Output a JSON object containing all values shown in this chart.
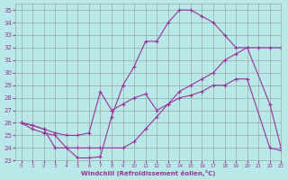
{
  "xlabel": "Windchill (Refroidissement éolien,°C)",
  "xlim": [
    -0.5,
    23
  ],
  "ylim": [
    23,
    35.5
  ],
  "yticks": [
    23,
    24,
    25,
    26,
    27,
    28,
    29,
    30,
    31,
    32,
    33,
    34,
    35
  ],
  "xticks": [
    0,
    1,
    2,
    3,
    4,
    5,
    6,
    7,
    8,
    9,
    10,
    11,
    12,
    13,
    14,
    15,
    16,
    17,
    18,
    19,
    20,
    21,
    22,
    23
  ],
  "bg_color": "#b8e8e8",
  "line_color": "#993399",
  "grid_color": "#99aaaa",
  "line1_x": [
    0,
    1,
    2,
    3,
    4,
    5,
    6,
    7,
    8,
    9,
    10,
    11,
    12,
    13,
    14,
    15,
    16,
    17,
    18,
    19,
    20,
    22,
    23
  ],
  "line1_y": [
    26.0,
    25.5,
    25.2,
    25.0,
    24.0,
    23.2,
    23.2,
    23.3,
    26.5,
    29.0,
    30.5,
    32.5,
    32.5,
    34.0,
    35.0,
    35.0,
    34.5,
    34.0,
    33.0,
    32.0,
    32.0,
    27.5,
    24.0
  ],
  "line2_x": [
    0,
    1,
    2,
    3,
    4,
    5,
    6,
    7,
    8,
    9,
    10,
    11,
    12,
    13,
    14,
    15,
    16,
    17,
    18,
    19,
    20,
    22,
    23
  ],
  "line2_y": [
    26.0,
    25.8,
    25.5,
    25.2,
    25.0,
    25.0,
    25.2,
    28.5,
    27.0,
    27.5,
    28.0,
    28.3,
    27.0,
    27.5,
    28.0,
    28.2,
    28.5,
    29.0,
    29.0,
    29.5,
    29.5,
    24.0,
    23.8
  ],
  "line3_x": [
    0,
    1,
    2,
    3,
    4,
    5,
    6,
    7,
    9,
    10,
    11,
    12,
    13,
    14,
    15,
    16,
    17,
    18,
    19,
    20,
    21,
    22,
    23
  ],
  "line3_y": [
    26.0,
    25.8,
    25.5,
    24.0,
    24.0,
    24.0,
    24.0,
    24.0,
    24.0,
    24.5,
    25.5,
    26.5,
    27.5,
    28.5,
    29.0,
    29.5,
    30.0,
    31.0,
    31.5,
    32.0,
    32.0,
    32.0,
    32.0
  ]
}
